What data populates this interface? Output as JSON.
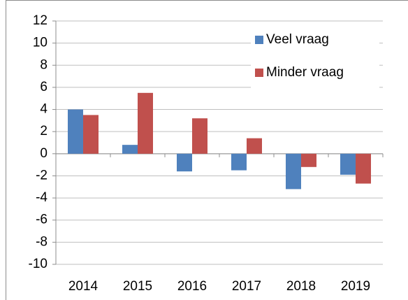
{
  "chart_data": {
    "type": "bar",
    "categories": [
      "2014",
      "2015",
      "2016",
      "2017",
      "2018",
      "2019"
    ],
    "series": [
      {
        "name": "Veel vraag",
        "color": "#4f81bd",
        "values": [
          4.0,
          0.8,
          -1.6,
          -1.5,
          -3.2,
          -1.9
        ]
      },
      {
        "name": "Minder vraag",
        "color": "#c0504d",
        "values": [
          3.5,
          5.5,
          3.2,
          1.4,
          -1.2,
          -2.7
        ]
      }
    ],
    "ylim": [
      -10,
      12
    ],
    "yticks": [
      -10,
      -8,
      -6,
      -4,
      -2,
      0,
      2,
      4,
      6,
      8,
      10,
      12
    ],
    "grid": true,
    "legend": "upper right"
  }
}
